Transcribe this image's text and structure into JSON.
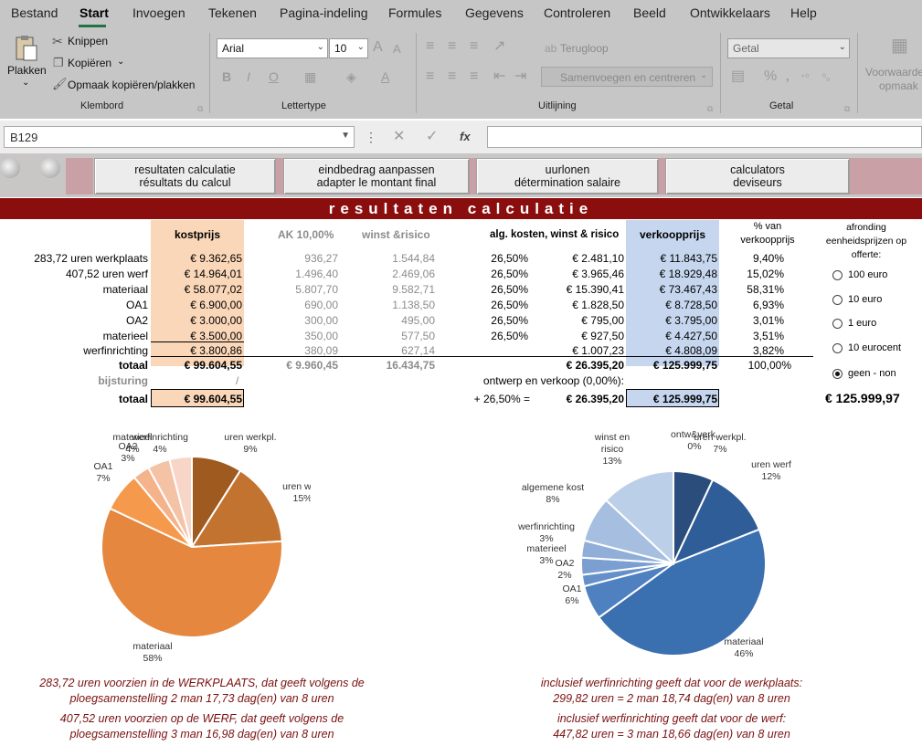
{
  "ribbon": {
    "tabs": [
      "Bestand",
      "Start",
      "Invoegen",
      "Tekenen",
      "Pagina-indeling",
      "Formules",
      "Gegevens",
      "Controleren",
      "Beeld",
      "Ontwikkelaars",
      "Help"
    ],
    "clipboard": {
      "paste": "Plakken",
      "cut": "Knippen",
      "copy": "Kopiëren",
      "format_painter": "Opmaak kopiëren/plakken",
      "group": "Klembord"
    },
    "font": {
      "name": "Arial",
      "size": "10",
      "group": "Lettertype"
    },
    "alignment": {
      "wrap": "Terugloop",
      "merge": "Samenvoegen en centreren",
      "group": "Uitlijning"
    },
    "number": {
      "format": "Getal",
      "group": "Getal"
    },
    "styles": {
      "conditional_line1": "Voorwaarde",
      "conditional_line2": "opmaak"
    }
  },
  "formula_bar": {
    "name_box": "B129",
    "fx": "fx"
  },
  "nav": [
    {
      "line1": "resultaten calculatie",
      "line2": "résultats du calcul"
    },
    {
      "line1": "eindbedrag aanpassen",
      "line2": "adapter le montant final"
    },
    {
      "line1": "uurlonen",
      "line2": "détermination salaire"
    },
    {
      "line1": "calculators",
      "line2": "deviseurs"
    }
  ],
  "title": "resultaten calculatie",
  "table": {
    "headers": {
      "kostprijs": "kostprijs",
      "ak": "AK 10,00%",
      "winst": "winst &risico",
      "alg": "alg. kosten, winst & risico",
      "verkoopprijs": "verkoopprijs",
      "pct_line1": "% van",
      "pct_line2": "verkoopprijs"
    },
    "rows": [
      {
        "label": "283,72 uren werkplaats",
        "kost": "€ 9.362,65",
        "ak": "936,27",
        "winst": "1.544,84",
        "pct": "26,50%",
        "alg": "€ 2.481,10",
        "verkoop": "€ 11.843,75",
        "share": "9,40%"
      },
      {
        "label": "407,52 uren werf",
        "kost": "€ 14.964,01",
        "ak": "1.496,40",
        "winst": "2.469,06",
        "pct": "26,50%",
        "alg": "€ 3.965,46",
        "verkoop": "€ 18.929,48",
        "share": "15,02%"
      },
      {
        "label": "materiaal",
        "kost": "€ 58.077,02",
        "ak": "5.807,70",
        "winst": "9.582,71",
        "pct": "26,50%",
        "alg": "€ 15.390,41",
        "verkoop": "€ 73.467,43",
        "share": "58,31%"
      },
      {
        "label": "OA1",
        "kost": "€ 6.900,00",
        "ak": "690,00",
        "winst": "1.138,50",
        "pct": "26,50%",
        "alg": "€ 1.828,50",
        "verkoop": "€ 8.728,50",
        "share": "6,93%"
      },
      {
        "label": "OA2",
        "kost": "€ 3.000,00",
        "ak": "300,00",
        "winst": "495,00",
        "pct": "26,50%",
        "alg": "€ 795,00",
        "verkoop": "€ 3.795,00",
        "share": "3,01%"
      },
      {
        "label": "materieel",
        "kost": "€ 3.500,00",
        "ak": "350,00",
        "winst": "577,50",
        "pct": "26,50%",
        "alg": "€ 927,50",
        "verkoop": "€ 4.427,50",
        "share": "3,51%"
      },
      {
        "label": "werfinrichting",
        "kost": "€ 3.800,86",
        "ak": "380,09",
        "winst": "627,14",
        "pct": "",
        "alg": "€ 1.007,23",
        "verkoop": "€ 4.808,09",
        "share": "3,82%"
      }
    ],
    "totals": {
      "label": "totaal",
      "kost": "€ 99.604,55",
      "ak": "€ 9.960,45",
      "winst": "16.434,75",
      "alg": "€ 26.395,20",
      "verkoop": "€ 125.999,75",
      "share": "100,00%"
    },
    "bijsturing": {
      "label": "bijsturing",
      "kost": "/",
      "note": "ontwerp en verkoop (0,00%):"
    },
    "final": {
      "label": "totaal",
      "kost": "€ 99.604,55",
      "formula": "+ 26,50% =",
      "alg": "€ 26.395,20",
      "verkoop": "€ 125.999,75"
    }
  },
  "rounding": {
    "title_line1": "afronding",
    "title_line2": "eenheidsprijzen op",
    "title_line3": "offerte:",
    "options": [
      "100 euro",
      "10 euro",
      "1 euro",
      "10 eurocent",
      "geen - non"
    ],
    "selected": "geen - non",
    "result": "€ 125.999,97"
  },
  "chart_data": [
    {
      "type": "pie",
      "slices": [
        {
          "label": "uren werkpl.",
          "value": 9,
          "color": "#9e5a1f"
        },
        {
          "label": "uren werf",
          "value": 15,
          "color": "#c2732f"
        },
        {
          "label": "materiaal",
          "value": 58,
          "color": "#e5873e"
        },
        {
          "label": "OA1",
          "value": 7,
          "color": "#f59a4d"
        },
        {
          "label": "OA2",
          "value": 3,
          "color": "#f5b38b"
        },
        {
          "label": "materieel",
          "value": 4,
          "color": "#f4c3a6"
        },
        {
          "label": "werfinrichting",
          "value": 4,
          "color": "#f8d6c7"
        }
      ]
    },
    {
      "type": "pie",
      "slices": [
        {
          "label": "ontw&verk.",
          "value": 0,
          "color": "#1f3b61"
        },
        {
          "label": "uren werkpl.",
          "value": 7,
          "color": "#2a4d7c"
        },
        {
          "label": "uren werf",
          "value": 12,
          "color": "#2f5d98"
        },
        {
          "label": "materiaal",
          "value": 46,
          "color": "#3a6fb0"
        },
        {
          "label": "OA1",
          "value": 6,
          "color": "#4f80c0"
        },
        {
          "label": "OA2",
          "value": 2,
          "color": "#6690c9"
        },
        {
          "label": "materieel",
          "value": 3,
          "color": "#7b9fd0"
        },
        {
          "label": "werfinrichting",
          "value": 3,
          "color": "#90aed7"
        },
        {
          "label": "algemene kost",
          "value": 8,
          "color": "#a6bfe0"
        },
        {
          "label": "winst en risico",
          "value": 13,
          "color": "#bccfe8"
        }
      ]
    }
  ],
  "notes": {
    "left1_line1": "283,72 uren voorzien in de WERKPLAATS, dat geeft volgens de",
    "left1_line2": "ploegsamenstelling 2 man 17,73 dag(en) van 8 uren",
    "left2_line1": "407,52 uren voorzien op de WERF, dat geeft volgens de",
    "left2_line2": "ploegsamenstelling 3 man 16,98 dag(en) van 8 uren",
    "right1_line1": "inclusief werfinrichting geeft dat voor de werkplaats:",
    "right1_line2": "299,82 uren = 2 man 18,74 dag(en) van 8 uren",
    "right2_line1": "inclusief werfinrichting geeft dat voor de werf:",
    "right2_line2": "447,82 uren = 3 man 18,66 dag(en) van 8 uren"
  }
}
